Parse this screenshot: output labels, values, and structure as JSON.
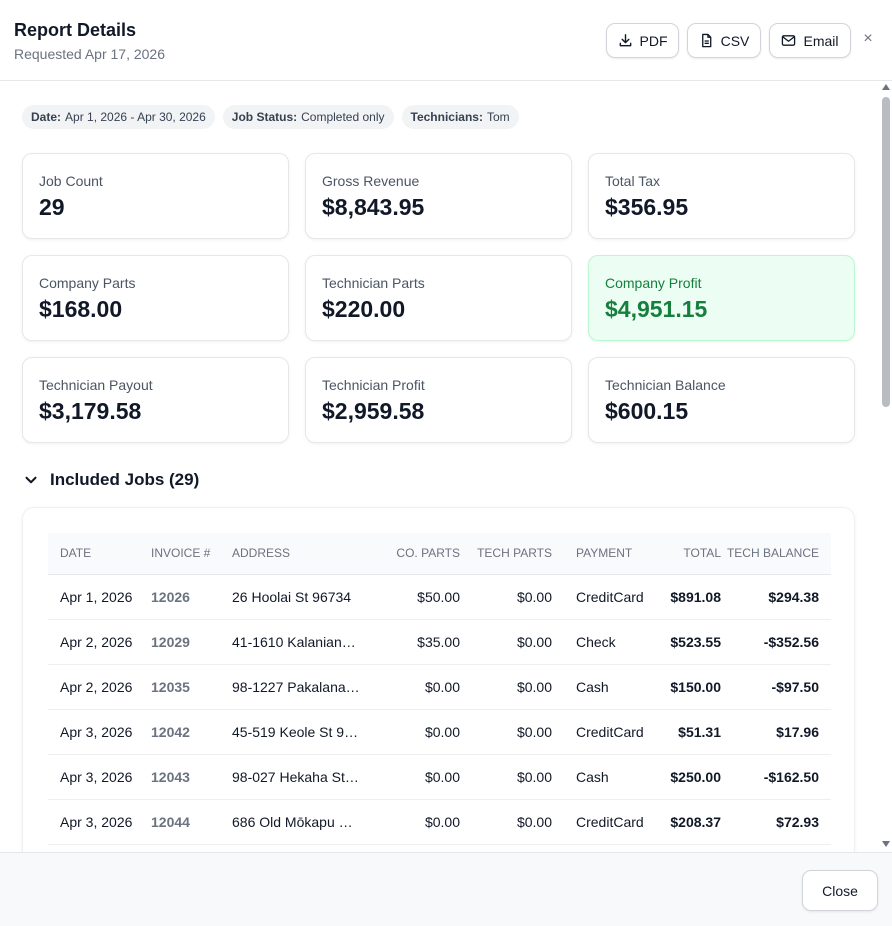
{
  "header": {
    "title": "Report Details",
    "subtitle": "Requested Apr 17, 2026",
    "pdf_label": "PDF",
    "csv_label": "CSV",
    "email_label": "Email",
    "close_glyph": "×"
  },
  "filters": [
    {
      "key": "Date:",
      "value": "Apr 1, 2026 - Apr 30, 2026"
    },
    {
      "key": "Job Status:",
      "value": "Completed only"
    },
    {
      "key": "Technicians:",
      "value": "Tom"
    }
  ],
  "metrics": [
    {
      "label": "Job Count",
      "value": "29"
    },
    {
      "label": "Gross Revenue",
      "value": "$8,843.95"
    },
    {
      "label": "Total Tax",
      "value": "$356.95"
    },
    {
      "label": "Company Parts",
      "value": "$168.00"
    },
    {
      "label": "Technician Parts",
      "value": "$220.00"
    },
    {
      "label": "Company Profit",
      "value": "$4,951.15"
    },
    {
      "label": "Technician Payout",
      "value": "$3,179.58"
    },
    {
      "label": "Technician Profit",
      "value": "$2,959.58"
    },
    {
      "label": "Technician Balance",
      "value": "$600.15"
    }
  ],
  "jobs_section": {
    "title": "Included Jobs (29)"
  },
  "table": {
    "headers": [
      "DATE",
      "INVOICE #",
      "ADDRESS",
      "CO. PARTS",
      "TECH PARTS",
      "PAYMENT",
      "TOTAL",
      "TECH BALANCE"
    ],
    "rows": [
      [
        "Apr 1, 2026",
        "12026",
        "26 Hoolai St 96734",
        "$50.00",
        "$0.00",
        "CreditCard",
        "$891.08",
        "$294.38"
      ],
      [
        "Apr 2, 2026",
        "12029",
        "41-1610 Kalaniana...",
        "$35.00",
        "$0.00",
        "Check",
        "$523.55",
        "-$352.56"
      ],
      [
        "Apr 2, 2026",
        "12035",
        "98-1227 Pakalana ...",
        "$0.00",
        "$0.00",
        "Cash",
        "$150.00",
        "-$97.50"
      ],
      [
        "Apr 3, 2026",
        "12042",
        "45-519 Keole St 96...",
        "$0.00",
        "$0.00",
        "CreditCard",
        "$51.31",
        "$17.96"
      ],
      [
        "Apr 3, 2026",
        "12043",
        "98-027 Hekaha St ...",
        "$0.00",
        "$0.00",
        "Cash",
        "$250.00",
        "-$162.50"
      ],
      [
        "Apr 3, 2026",
        "12044",
        "686 Old Mōkapu R...",
        "$0.00",
        "$0.00",
        "CreditCard",
        "$208.37",
        "$72.93"
      ],
      [
        "",
        "",
        "",
        "",
        "",
        "",
        "",
        ""
      ]
    ]
  },
  "footer": {
    "close_label": "Close"
  },
  "colors": {
    "accent_green": "#15803d",
    "green_card_bg": "#ecfdf3"
  }
}
